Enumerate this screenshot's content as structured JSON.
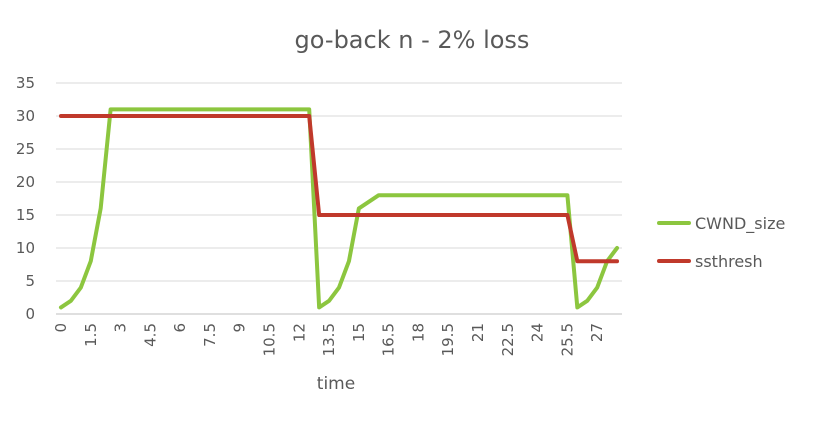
{
  "chart_data": {
    "type": "line",
    "title": "go-back n - 2%  loss",
    "xlabel": "time",
    "ylabel": "",
    "ylim": [
      0,
      35
    ],
    "y_ticks": [
      0,
      5,
      10,
      15,
      20,
      25,
      30,
      35
    ],
    "x_categories": [
      0,
      0.5,
      1,
      1.5,
      2,
      2.5,
      3,
      3.5,
      4,
      4.5,
      5,
      5.5,
      6,
      6.5,
      7,
      7.5,
      8,
      8.5,
      9,
      9.5,
      10,
      10.5,
      11,
      11.5,
      12,
      12.5,
      13,
      13.5,
      14,
      14.5,
      15,
      15.5,
      16,
      16.5,
      17,
      17.5,
      18,
      18.5,
      19,
      19.5,
      20,
      20.5,
      21,
      21.5,
      22,
      22.5,
      23,
      23.5,
      24,
      24.5,
      25,
      25.5,
      26,
      26.5,
      27,
      27.5,
      28
    ],
    "x_tick_labels": [
      "0",
      "1.5",
      "3",
      "4.5",
      "6",
      "7.5",
      "9",
      "10.5",
      "12",
      "13.5",
      "15",
      "16.5",
      "18",
      "19.5",
      "21",
      "22.5",
      "24",
      "25.5",
      "27"
    ],
    "x_tick_label_step": 3,
    "grid": true,
    "legend_position": "right",
    "series": [
      {
        "name": "CWND_size",
        "color": "#8CC63F",
        "values": [
          1,
          2,
          4,
          8,
          16,
          31,
          31,
          31,
          31,
          31,
          31,
          31,
          31,
          31,
          31,
          31,
          31,
          31,
          31,
          31,
          31,
          31,
          31,
          31,
          31,
          31,
          1,
          2,
          4,
          8,
          16,
          17,
          18,
          18,
          18,
          18,
          18,
          18,
          18,
          18,
          18,
          18,
          18,
          18,
          18,
          18,
          18,
          18,
          18,
          18,
          18,
          18,
          1,
          2,
          4,
          8,
          10
        ]
      },
      {
        "name": "ssthresh",
        "color": "#C0392B",
        "values": [
          30,
          30,
          30,
          30,
          30,
          30,
          30,
          30,
          30,
          30,
          30,
          30,
          30,
          30,
          30,
          30,
          30,
          30,
          30,
          30,
          30,
          30,
          30,
          30,
          30,
          30,
          15,
          15,
          15,
          15,
          15,
          15,
          15,
          15,
          15,
          15,
          15,
          15,
          15,
          15,
          15,
          15,
          15,
          15,
          15,
          15,
          15,
          15,
          15,
          15,
          15,
          15,
          8,
          8,
          8,
          8,
          8
        ]
      }
    ]
  }
}
